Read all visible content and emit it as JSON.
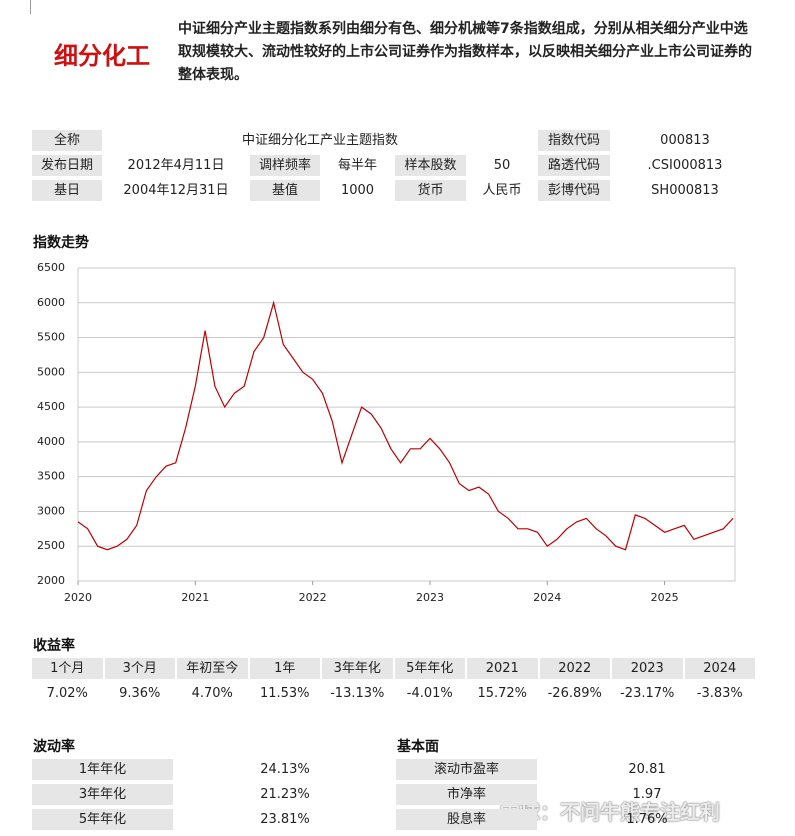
{
  "header": {
    "title": "细分化工",
    "description": "中证细分产业主题指数系列由细分有色、细分机械等7条指数组成，分别从相关细分产业中选取规模较大、流动性较好的上市公司证券作为指数样本，以反映相关细分产业上市公司证券的整体表现。"
  },
  "info": {
    "rows": [
      [
        {
          "label": "全称",
          "value": "中证细分化工产业主题指数"
        },
        {
          "label": "指数代码",
          "value": "000813"
        }
      ],
      [
        {
          "label": "发布日期",
          "value": "2012年4月11日"
        },
        {
          "label": "调样频率",
          "value": "每半年"
        },
        {
          "label": "样本股数",
          "value": "50"
        },
        {
          "label": "路透代码",
          "value": ".CSI000813"
        }
      ],
      [
        {
          "label": "基日",
          "value": "2004年12月31日"
        },
        {
          "label": "基值",
          "value": "1000"
        },
        {
          "label": "货币",
          "value": "人民币"
        },
        {
          "label": "彭博代码",
          "value": "SH000813"
        }
      ]
    ]
  },
  "chart_data": {
    "type": "line",
    "title": "指数走势",
    "x": [
      2020.0,
      2020.083,
      2020.167,
      2020.25,
      2020.333,
      2020.417,
      2020.5,
      2020.583,
      2020.667,
      2020.75,
      2020.833,
      2020.917,
      2021.0,
      2021.083,
      2021.167,
      2021.25,
      2021.333,
      2021.417,
      2021.5,
      2021.583,
      2021.667,
      2021.75,
      2021.833,
      2021.917,
      2022.0,
      2022.083,
      2022.167,
      2022.25,
      2022.333,
      2022.417,
      2022.5,
      2022.583,
      2022.667,
      2022.75,
      2022.833,
      2022.917,
      2023.0,
      2023.083,
      2023.167,
      2023.25,
      2023.333,
      2023.417,
      2023.5,
      2023.583,
      2023.667,
      2023.75,
      2023.833,
      2023.917,
      2024.0,
      2024.083,
      2024.167,
      2024.25,
      2024.333,
      2024.417,
      2024.5,
      2024.583,
      2024.667,
      2024.75,
      2024.833,
      2024.917,
      2025.0,
      2025.083,
      2025.167,
      2025.25,
      2025.333,
      2025.417,
      2025.5,
      2025.583
    ],
    "values": [
      2850,
      2750,
      2500,
      2450,
      2500,
      2600,
      2800,
      3300,
      3500,
      3650,
      3700,
      4200,
      4800,
      5600,
      4800,
      4500,
      4700,
      4800,
      5300,
      5500,
      6000,
      5400,
      5200,
      5000,
      4900,
      4700,
      4300,
      3700,
      4100,
      4500,
      4400,
      4200,
      3900,
      3700,
      3900,
      3900,
      4050,
      3900,
      3700,
      3400,
      3300,
      3350,
      3250,
      3000,
      2900,
      2750,
      2750,
      2700,
      2500,
      2600,
      2750,
      2850,
      2900,
      2750,
      2650,
      2500,
      2450,
      2950,
      2900,
      2800,
      2700,
      2750,
      2800,
      2600,
      2650,
      2700,
      2750,
      2900
    ],
    "color": "#c00000",
    "xlim": [
      2020,
      2025.6
    ],
    "xticks": [
      2020,
      2021,
      2022,
      2023,
      2024,
      2025
    ],
    "ylim": [
      2000,
      6500
    ],
    "yticks": [
      2000,
      2500,
      3000,
      3500,
      4000,
      4500,
      5000,
      5500,
      6000,
      6500
    ],
    "grid": true
  },
  "returns": {
    "title": "收益率",
    "headers": [
      "1个月",
      "3个月",
      "年初至今",
      "1年",
      "3年年化",
      "5年年化",
      "2021",
      "2022",
      "2023",
      "2024"
    ],
    "values": [
      "7.02%",
      "9.36%",
      "4.70%",
      "11.53%",
      "-13.13%",
      "-4.01%",
      "15.72%",
      "-26.89%",
      "-23.17%",
      "-3.83%"
    ]
  },
  "volatility": {
    "title": "波动率",
    "rows": [
      {
        "label": "1年年化",
        "value": "24.13%"
      },
      {
        "label": "3年年化",
        "value": "21.23%"
      },
      {
        "label": "5年年化",
        "value": "23.81%"
      }
    ]
  },
  "fundamentals": {
    "title": "基本面",
    "rows": [
      {
        "label": "滚动市盈率",
        "value": "20.81"
      },
      {
        "label": "市净率",
        "value": "1.97"
      },
      {
        "label": "股息率",
        "value": "1.76%"
      }
    ]
  },
  "watermark": "雪球：不问牛熊专注红利"
}
